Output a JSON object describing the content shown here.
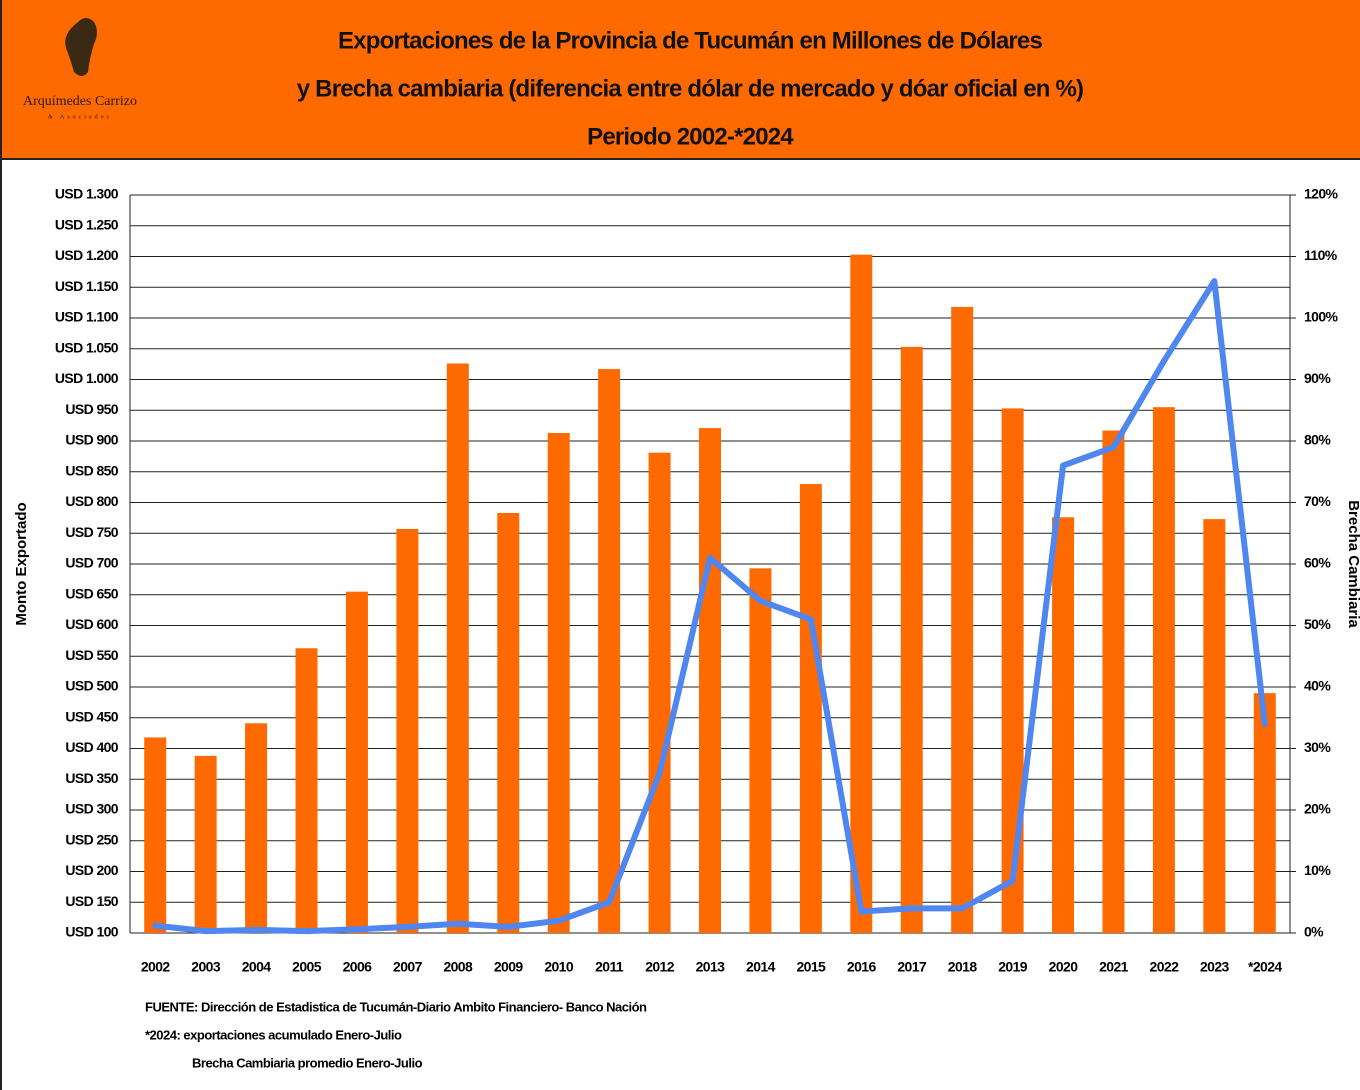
{
  "logo": {
    "name": "Arquímedes Carrizo",
    "tagline": "& Asociados"
  },
  "chart_data": {
    "type": "bar_line",
    "title": [
      "Exportaciones  de la Provincia de Tucumán en Millones de Dólares",
      "y Brecha cambiaria (diferencia entre dólar de mercado y dóar oficial en %)",
      "Periodo 2002-*2024"
    ],
    "y_label": "Monto Exportado",
    "y2_label": "Brecha Cambiaria",
    "categories": [
      "2002",
      "2003",
      "2004",
      "2005",
      "2006",
      "2007",
      "2008",
      "2009",
      "2010",
      "2011",
      "2012",
      "2013",
      "2014",
      "2015",
      "2016",
      "2017",
      "2018",
      "2019",
      "2020",
      "2021",
      "2022",
      "2023",
      "*2024"
    ],
    "series": [
      {
        "name": "Monto Exportado",
        "type": "bar",
        "color": "#ff6a00",
        "values": [
          418,
          388,
          441,
          563,
          655,
          757,
          1026,
          783,
          913,
          1017,
          881,
          921,
          693,
          830,
          1203,
          1053,
          1118,
          953,
          776,
          917,
          955,
          773,
          490
        ]
      },
      {
        "name": "Brecha Cambiaria",
        "type": "line",
        "axis": "y2",
        "color": "#4f86f0",
        "values": [
          1.2,
          0.3,
          0.5,
          0.3,
          0.6,
          1,
          1.5,
          1,
          2,
          5,
          26,
          61,
          54,
          51,
          3.5,
          4,
          4,
          8.5,
          76,
          79,
          93,
          106,
          34
        ]
      }
    ],
    "ylim": [
      100,
      1300
    ],
    "yticks": [
      {
        "value": 100,
        "label": "USD 100"
      },
      {
        "value": 150,
        "label": "USD 150"
      },
      {
        "value": 200,
        "label": "USD 200"
      },
      {
        "value": 250,
        "label": "USD 250"
      },
      {
        "value": 300,
        "label": "USD 300"
      },
      {
        "value": 350,
        "label": "USD 350"
      },
      {
        "value": 400,
        "label": "USD 400"
      },
      {
        "value": 450,
        "label": "USD 450"
      },
      {
        "value": 500,
        "label": "USD 500"
      },
      {
        "value": 550,
        "label": "USD 550"
      },
      {
        "value": 600,
        "label": "USD 600"
      },
      {
        "value": 650,
        "label": "USD 650"
      },
      {
        "value": 700,
        "label": "USD 700"
      },
      {
        "value": 750,
        "label": "USD 750"
      },
      {
        "value": 800,
        "label": "USD 800"
      },
      {
        "value": 850,
        "label": "USD 850"
      },
      {
        "value": 900,
        "label": "USD 900"
      },
      {
        "value": 950,
        "label": "USD 950"
      },
      {
        "value": 1000,
        "label": "USD 1.000"
      },
      {
        "value": 1050,
        "label": "USD 1.050"
      },
      {
        "value": 1100,
        "label": "USD 1.100"
      },
      {
        "value": 1150,
        "label": "USD 1.150"
      },
      {
        "value": 1200,
        "label": "USD 1.200"
      },
      {
        "value": 1250,
        "label": "USD 1.250"
      },
      {
        "value": 1300,
        "label": "USD 1.300"
      }
    ],
    "y2lim": [
      0,
      120
    ],
    "y2ticks": [
      {
        "value": 0,
        "label": "0%"
      },
      {
        "value": 10,
        "label": "10%"
      },
      {
        "value": 20,
        "label": "20%"
      },
      {
        "value": 30,
        "label": "30%"
      },
      {
        "value": 40,
        "label": "40%"
      },
      {
        "value": 50,
        "label": "50%"
      },
      {
        "value": 60,
        "label": "60%"
      },
      {
        "value": 70,
        "label": "70%"
      },
      {
        "value": 80,
        "label": "80%"
      },
      {
        "value": 90,
        "label": "90%"
      },
      {
        "value": 100,
        "label": "100%"
      },
      {
        "value": 110,
        "label": "110%"
      },
      {
        "value": 120,
        "label": "120%"
      }
    ],
    "grid": true,
    "notes": [
      "FUENTE: Dirección de Estadistica de Tucumán-Diario Ambito Financiero- Banco Nación",
      "*2024: exportaciones acumulado Enero-Julio",
      "Brecha Cambiaria promedio Enero-Julio"
    ]
  }
}
